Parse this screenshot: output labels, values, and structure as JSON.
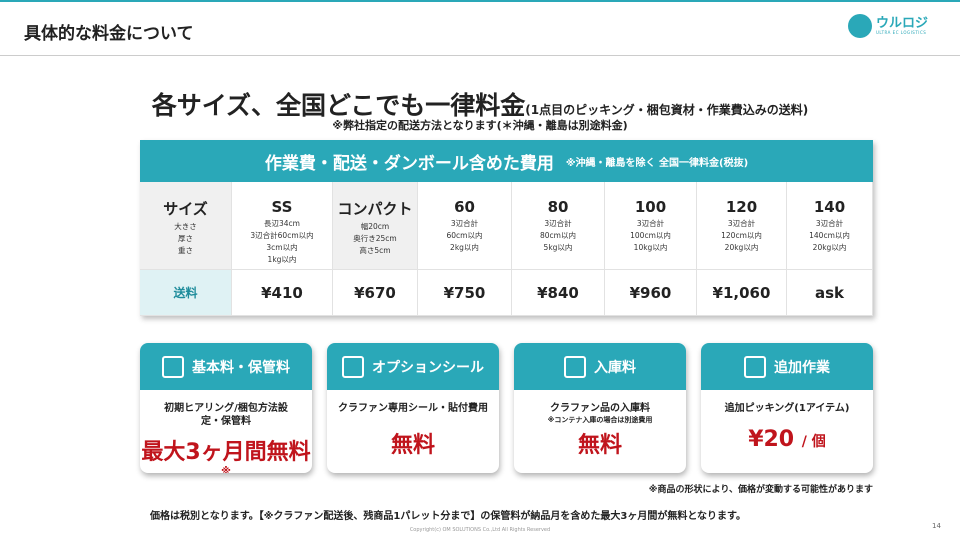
{
  "page": {
    "title": "具体的な料金について",
    "page_number": "14",
    "copyright": "Copyright(c) OM SOLUTIONS Co.,Ltd All Rights Reserved"
  },
  "logo": {
    "text": "ウルロジ",
    "sub": "ULTRA EC LOGISTICS"
  },
  "heading": {
    "main": "各サイズ、全国どこでも一律料金",
    "sub": "(1点目のピッキング・梱包資材・作業費込みの送料)",
    "note": "※弊社指定の配送方法となります(＊沖縄・離島は別途料金)"
  },
  "table": {
    "title": "作業費・配送・ダンボール含めた費用",
    "title_note": "※沖縄・離島を除く 全国一律料金(税抜)",
    "columns": [
      {
        "name": "サイズ",
        "details": [
          "大きさ",
          "厚さ",
          "重さ"
        ],
        "price": "送料"
      },
      {
        "name": "SS",
        "details": [
          "長辺34cm",
          "3辺合計60cm以内",
          "3cm以内",
          "1kg以内"
        ],
        "price": "¥410"
      },
      {
        "name": "コンパクト",
        "details": [
          "幅20cm",
          "奥行き25cm",
          "高さ5cm"
        ],
        "price": "¥670"
      },
      {
        "name": "60",
        "details": [
          "3辺合計",
          "60cm以内",
          "2kg以内"
        ],
        "price": "¥750"
      },
      {
        "name": "80",
        "details": [
          "3辺合計",
          "80cm以内",
          "5kg以内"
        ],
        "price": "¥840"
      },
      {
        "name": "100",
        "details": [
          "3辺合計",
          "100cm以内",
          "10kg以内"
        ],
        "price": "¥960"
      },
      {
        "name": "120",
        "details": [
          "3辺合計",
          "120cm以内",
          "20kg以内"
        ],
        "price": "¥1,060"
      },
      {
        "name": "140",
        "details": [
          "3辺合計",
          "140cm以内",
          "20kg以内"
        ],
        "price": "ask"
      }
    ]
  },
  "cards": [
    {
      "title": "基本料・保管料",
      "icon": "clipboard-icon",
      "desc": "初期ヒアリング/梱包方法設定・保管料",
      "sub": "",
      "price": "最大3ヶ月間無料",
      "mark": "※"
    },
    {
      "title": "オプションシール",
      "icon": "sticker-icon",
      "desc": "クラファン専用シール・貼付費用",
      "sub": "",
      "price": "無料"
    },
    {
      "title": "入庫料",
      "icon": "warehouse-icon",
      "desc": "クラファン品の入庫料",
      "sub": "※コンテナ入庫の場合は別途費用",
      "price": "無料"
    },
    {
      "title": "追加作業",
      "icon": "hand-pointer-icon",
      "desc": "追加ピッキング(1アイテム)",
      "sub": "",
      "price": "¥20",
      "unit": "/ 個"
    }
  ],
  "notes": {
    "shape": "※商品の形状により、価格が変動する可能性があります",
    "footer": "価格は税別となります。【※クラファン配送後、残商品1パレット分まで】の保管料が納品月を含めた最大3ヶ月間が無料となります。"
  },
  "colors": {
    "accent": "#2aa8b8",
    "price_red": "#c0141c"
  }
}
